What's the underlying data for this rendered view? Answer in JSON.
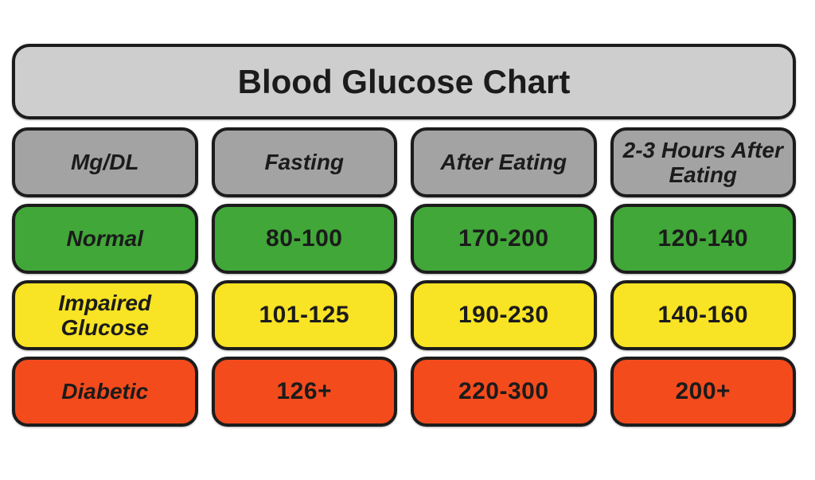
{
  "title": "Blood Glucose Chart",
  "colors": {
    "title_bar_bg": "#cecece",
    "header_bg": "#a3a3a3",
    "normal_green": "#41a738",
    "impaired_yellow": "#f8e324",
    "diabetic_red": "#f44b1d",
    "border": "#1c1c1c",
    "text": "#1b1b1b",
    "page_bg": "#ffffff"
  },
  "chart_data": {
    "type": "table",
    "title": "Blood Glucose Chart",
    "columns": [
      "Mg/DL",
      "Fasting",
      "After Eating",
      "2-3 Hours After Eating"
    ],
    "rows": [
      [
        "Normal",
        "80-100",
        "170-200",
        "120-140"
      ],
      [
        "Impaired Glucose",
        "101-125",
        "190-230",
        "140-160"
      ],
      [
        "Diabetic",
        "126+",
        "220-300",
        "200+"
      ]
    ],
    "row_colors": [
      "#41a738",
      "#f8e324",
      "#f44b1d"
    ],
    "units": "Mg/DL"
  }
}
